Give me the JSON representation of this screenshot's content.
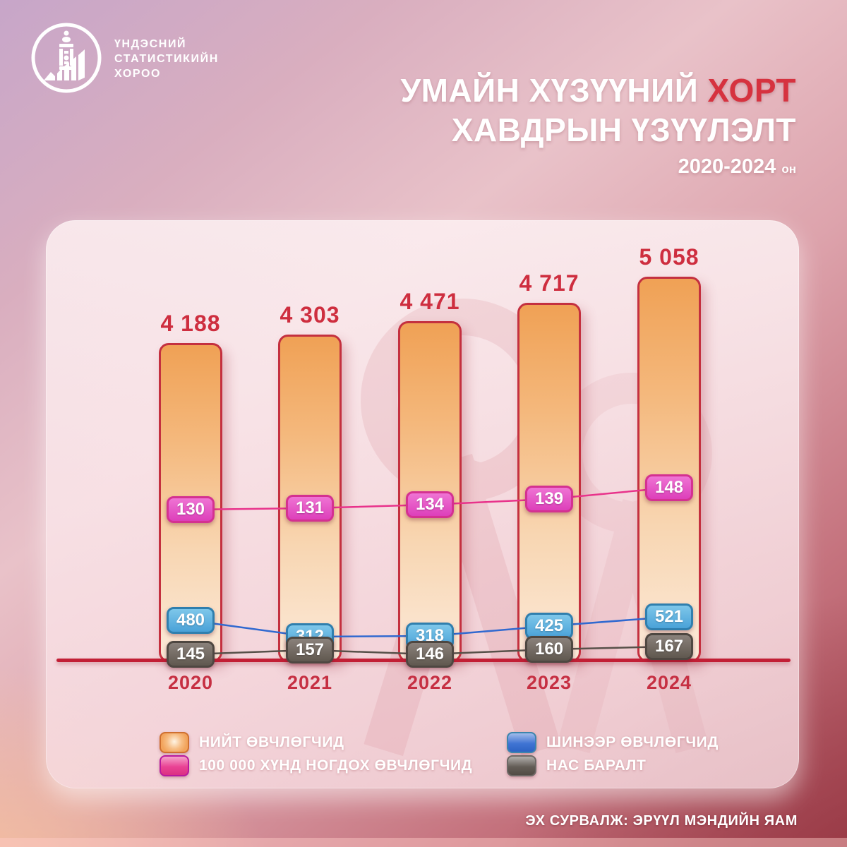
{
  "header": {
    "org_name": {
      "line1": "ҮНДЭСНИЙ",
      "line2": "СТАТИСТИКИЙН",
      "line3": "ХОРОО"
    },
    "title": {
      "part1": "УМАЙН ХҮЗҮҮНИЙ",
      "highlight": "ХОРТ",
      "line2": "ХАВДРЫН ҮЗҮҮЛЭЛТ",
      "years": "2020-2024",
      "years_suffix": "он",
      "highlight_color": "#d6323f",
      "text_color": "#ffffff"
    }
  },
  "chart_data": {
    "type": "bar",
    "title": "УМАЙН ХҮЗҮҮНИЙ ХОРТ ХАВДРЫН ҮЗҮҮЛЭЛТ 2020-2024 он",
    "categories": [
      "2020",
      "2021",
      "2022",
      "2023",
      "2024"
    ],
    "series": [
      {
        "id": "total",
        "name": "НИЙТ ӨВЧЛӨГЧИД",
        "type": "bar",
        "color": "#f2a45c",
        "values": [
          4188,
          4303,
          4471,
          4717,
          5058
        ],
        "value_labels": [
          "4 188",
          "4 303",
          "4 471",
          "4 717",
          "5 058"
        ]
      },
      {
        "id": "per_100k",
        "name": "100 000 ХҮНД НОГДОХ ӨВЧЛӨГЧИД",
        "type": "line",
        "color": "#e8338b",
        "values": [
          130,
          131,
          134,
          139,
          148
        ]
      },
      {
        "id": "new_cases",
        "name": "ШИНЭЭР ӨВЧЛӨГЧИД",
        "type": "line",
        "color": "#3069d0",
        "values": [
          480,
          312,
          318,
          425,
          521
        ]
      },
      {
        "id": "deaths",
        "name": "НАС БАРАЛТ",
        "type": "line",
        "color": "#575049",
        "values": [
          145,
          157,
          146,
          160,
          167
        ]
      }
    ],
    "bar_value_label_color": "#ce2e3f",
    "category_label_color": "#c62f42",
    "axis_color": "#c21f35",
    "grid": false,
    "legend_position": "bottom",
    "ylim": [
      0,
      5058
    ]
  },
  "footer": {
    "source": "ЭХ СУРВАЛЖ: ЭРҮҮЛ МЭНДИЙН ЯАМ"
  }
}
